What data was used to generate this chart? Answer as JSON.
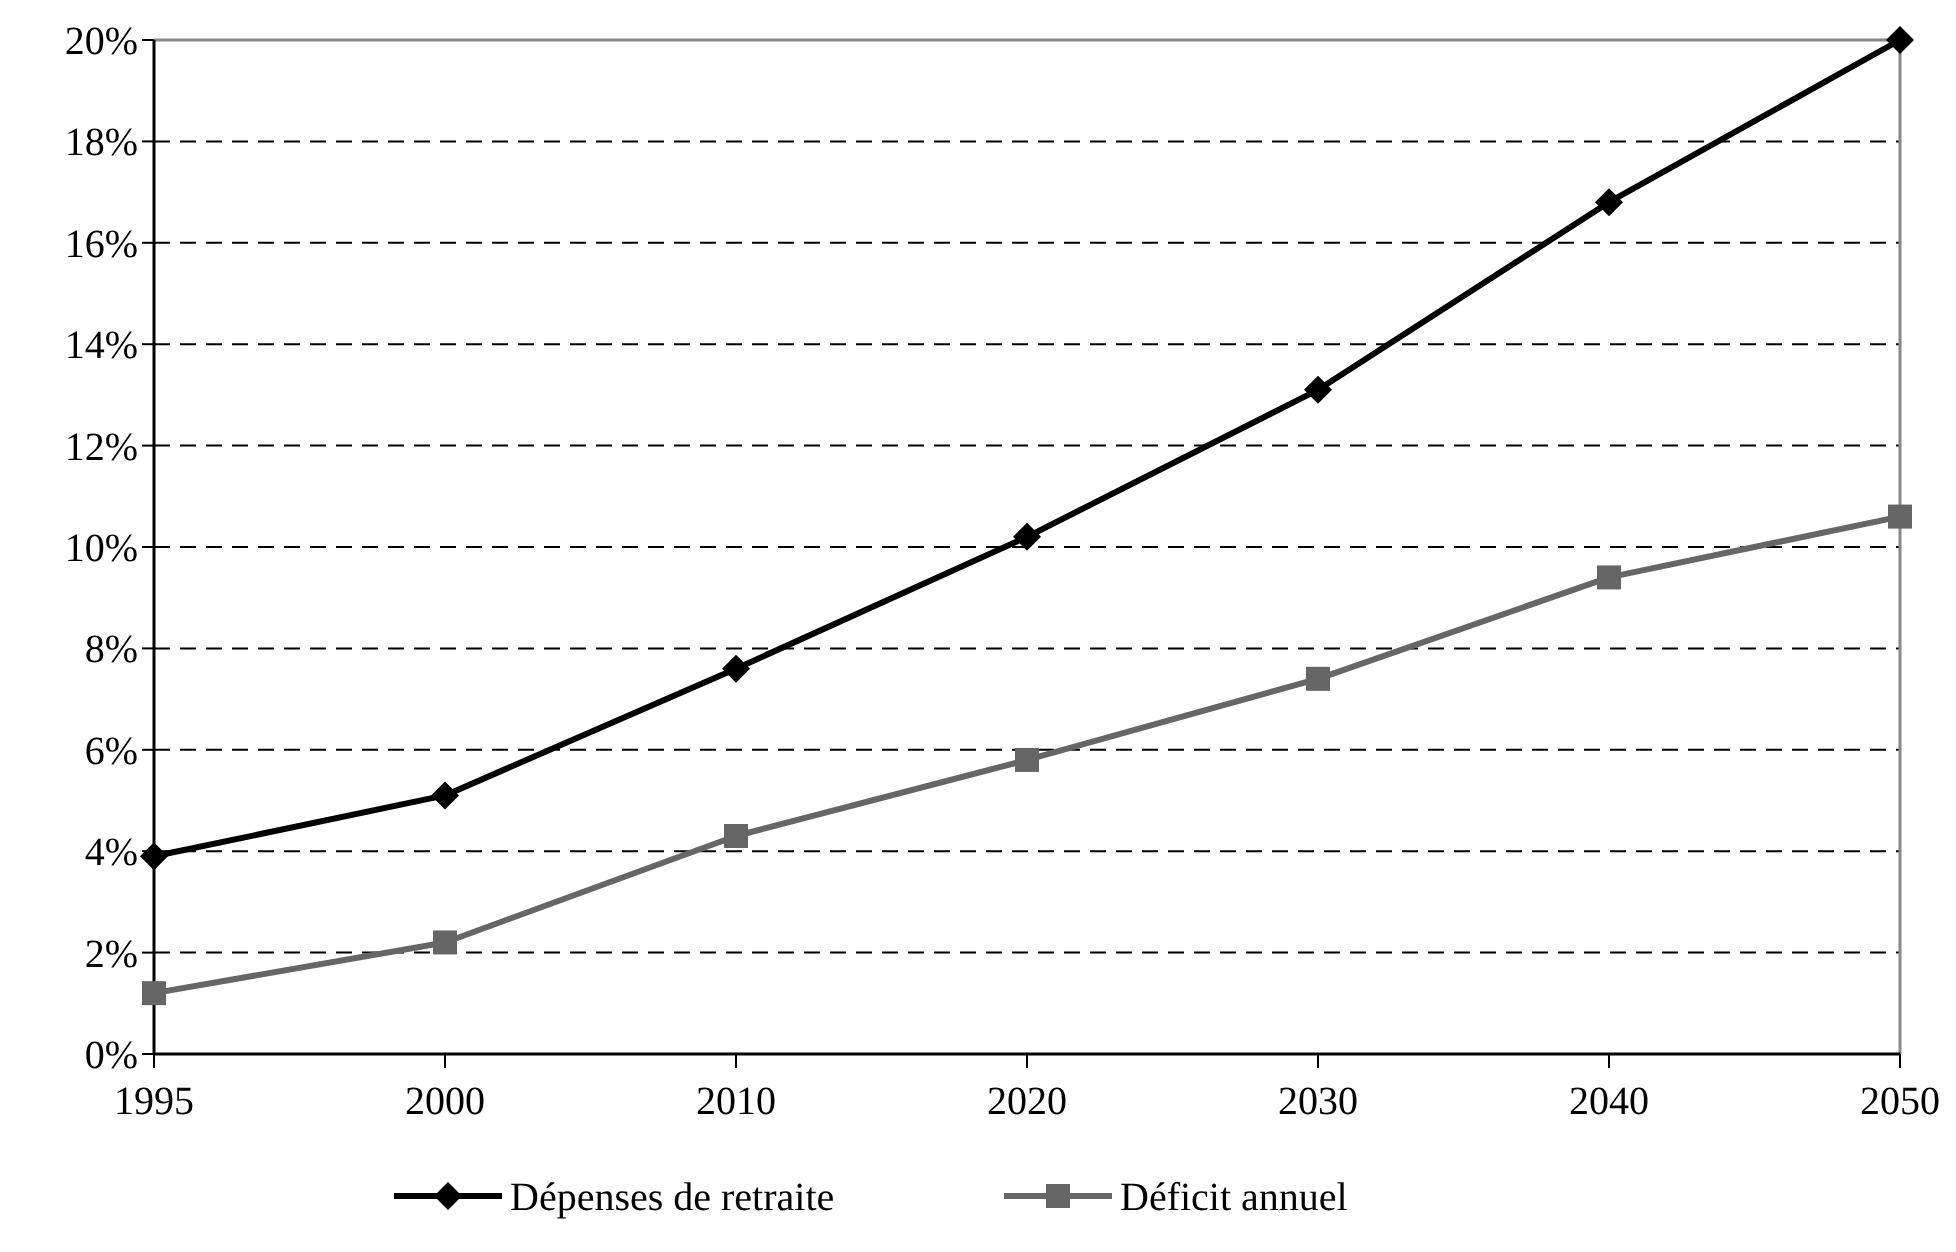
{
  "chart_data": {
    "type": "line",
    "categories": [
      "1995",
      "2000",
      "2010",
      "2020",
      "2030",
      "2040",
      "2050"
    ],
    "series": [
      {
        "name": "Dépenses de retraite",
        "color": "#000000",
        "marker": "diamond",
        "values": [
          3.9,
          5.1,
          7.6,
          10.2,
          13.1,
          16.8,
          20.0
        ]
      },
      {
        "name": "Déficit annuel",
        "color": "#666666",
        "marker": "square",
        "values": [
          1.2,
          2.2,
          4.3,
          5.8,
          7.4,
          9.4,
          10.6
        ]
      }
    ],
    "ylim": [
      0,
      20
    ],
    "yticks": [
      {
        "value": 0,
        "label": "0%"
      },
      {
        "value": 2,
        "label": "2%"
      },
      {
        "value": 4,
        "label": "4%"
      },
      {
        "value": 6,
        "label": "6%"
      },
      {
        "value": 8,
        "label": "8%"
      },
      {
        "value": 10,
        "label": "10%"
      },
      {
        "value": 12,
        "label": "12%"
      },
      {
        "value": 14,
        "label": "14%"
      },
      {
        "value": 16,
        "label": "16%"
      },
      {
        "value": 18,
        "label": "18%"
      },
      {
        "value": 20,
        "label": "20%"
      }
    ],
    "grid": "y",
    "legend": "bottom",
    "line_style": "solid"
  }
}
